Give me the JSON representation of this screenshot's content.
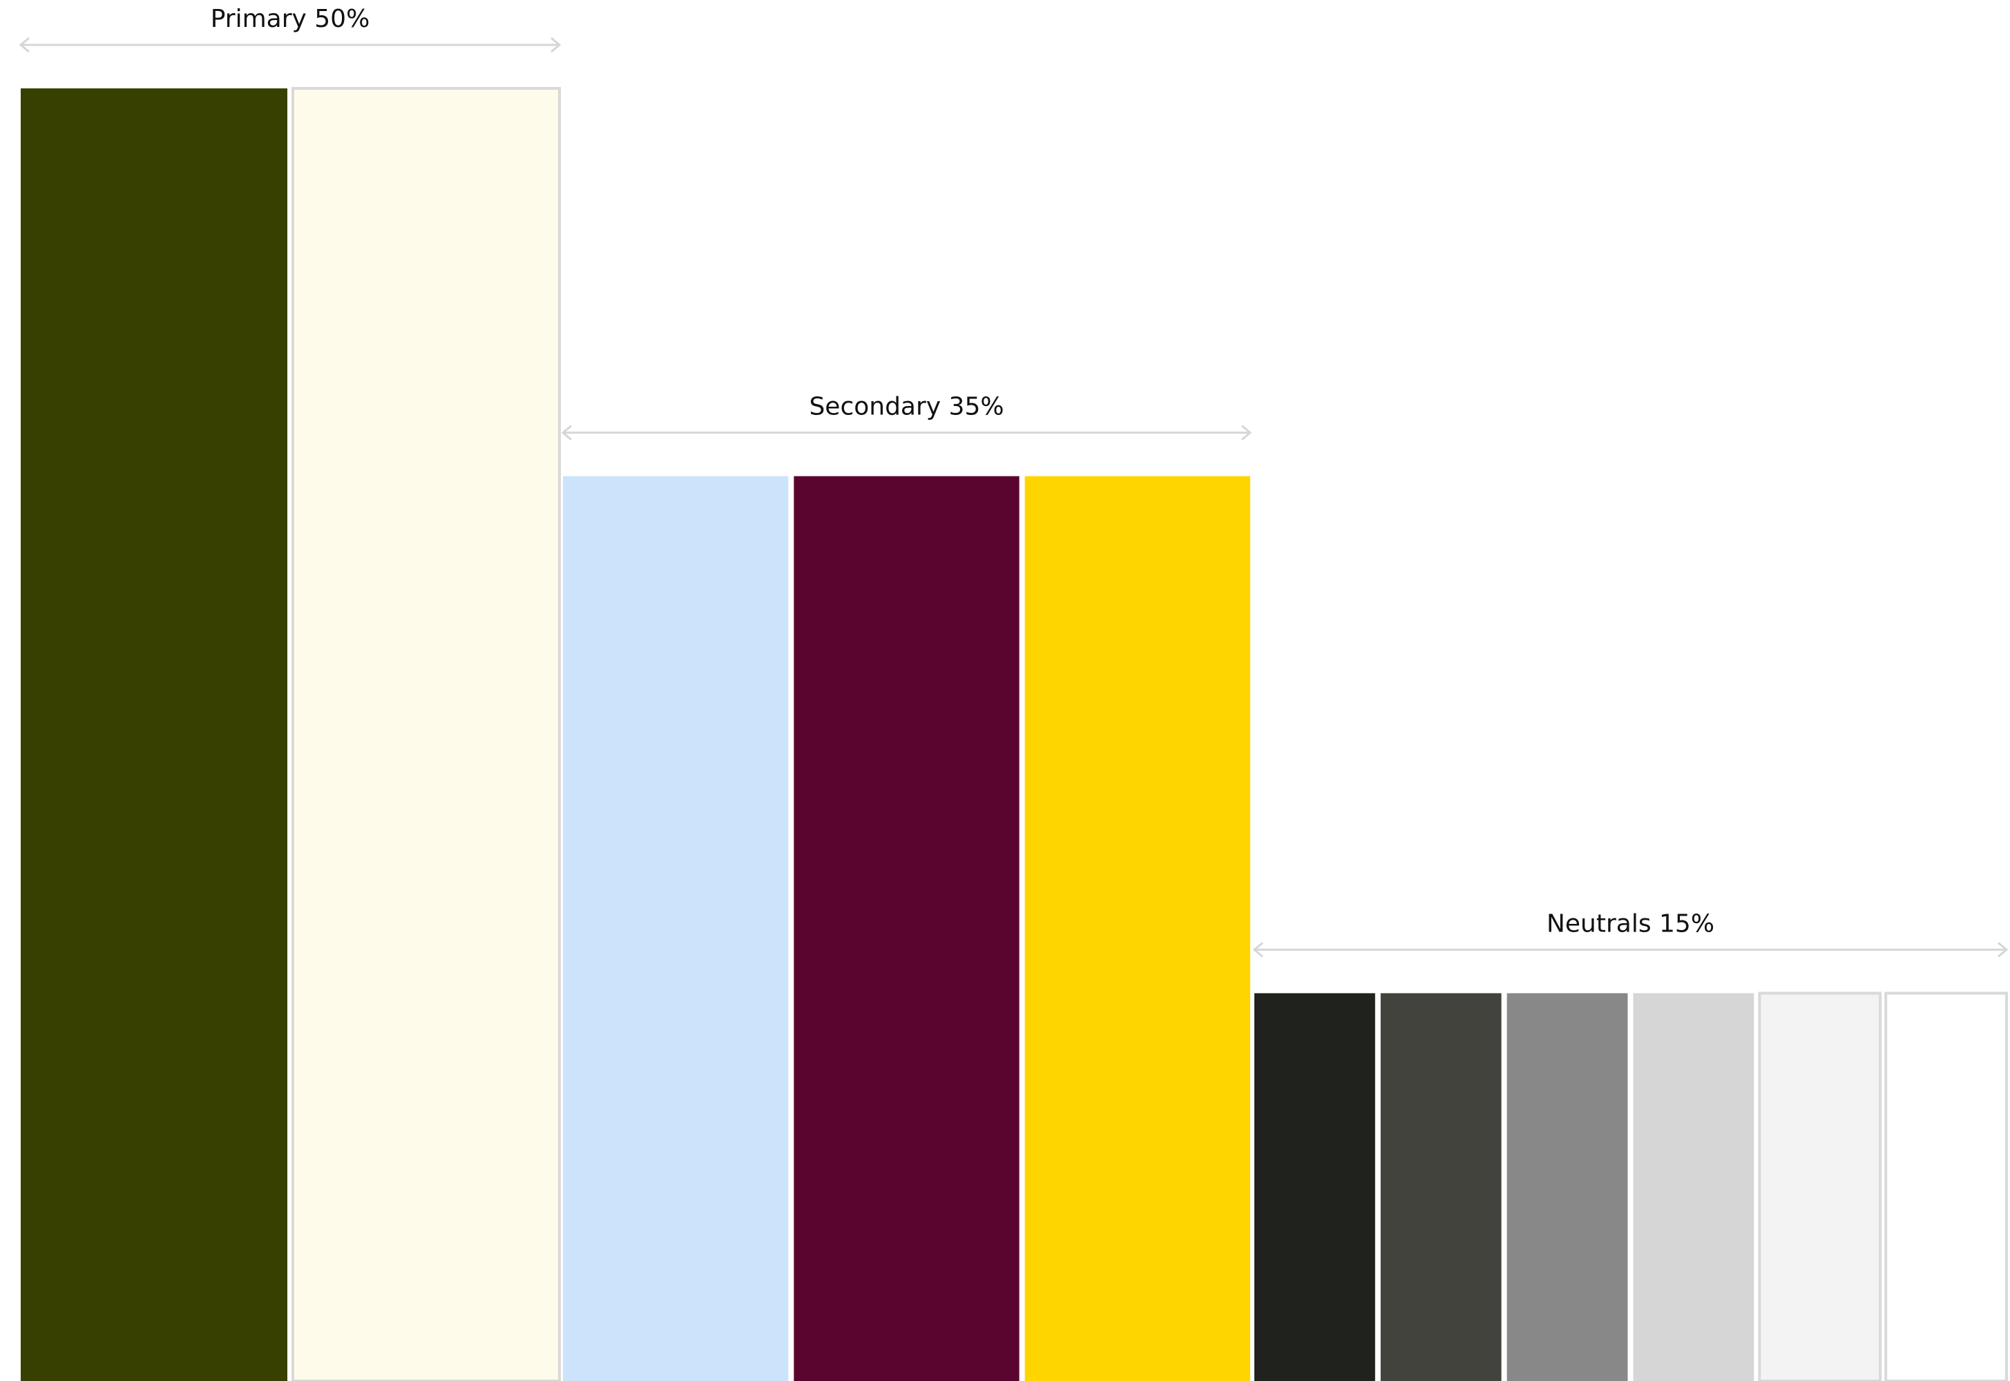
{
  "chart_data": {
    "type": "bar",
    "title": "",
    "xlabel": "",
    "ylabel": "",
    "ylim": [
      0,
      50
    ],
    "grid": false,
    "groups": [
      {
        "label": "Primary 50%",
        "percent": 50,
        "swatches": [
          "#374000",
          "#FFFBEB"
        ]
      },
      {
        "label": "Secondary 35%",
        "percent": 35,
        "swatches": [
          "#CBE3FB",
          "#5A052F",
          "#FFD500"
        ]
      },
      {
        "label": "Neutrals 15%",
        "percent": 15,
        "swatches": [
          "#20221E",
          "#42433D",
          "#888888",
          "#D6D6D6",
          "#F3F3F3",
          "#FFFFFF"
        ]
      }
    ]
  }
}
